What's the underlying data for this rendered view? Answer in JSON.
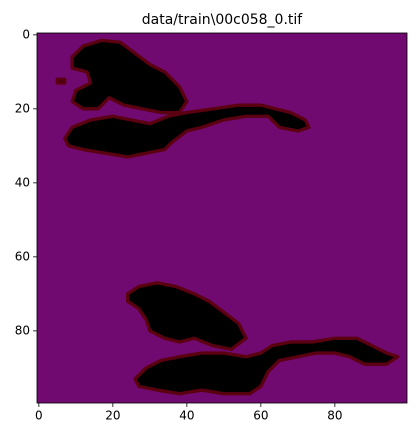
{
  "chart_data": {
    "type": "image",
    "title": "data/train\\00c058_0.tif",
    "xlim": [
      -0.5,
      99.5
    ],
    "ylim": [
      99.5,
      -0.5
    ],
    "xticks": [
      0,
      20,
      40,
      60,
      80
    ],
    "yticks": [
      0,
      20,
      40,
      60,
      80
    ]
  }
}
